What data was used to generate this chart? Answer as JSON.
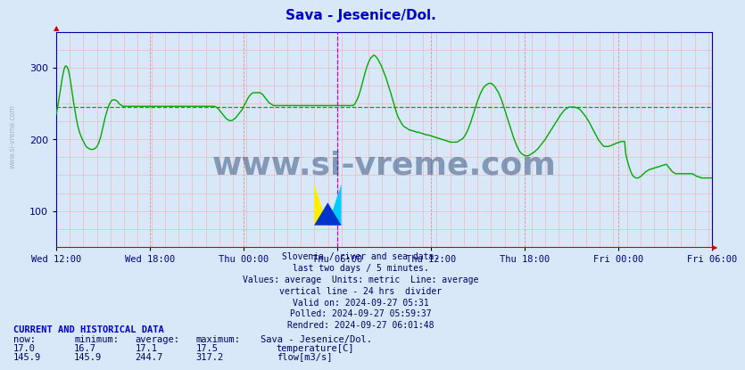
{
  "title": "Sava - Jesenice/Dol.",
  "title_color": "#0000cc",
  "bg_color": "#d8e8f8",
  "plot_bg_color": "#d8e8f8",
  "line_color": "#00aa00",
  "avg_line_color": "#00aa00",
  "avg_value": 244.7,
  "ymin": 50,
  "ymax": 350,
  "yticks": [
    100,
    200,
    300
  ],
  "xlabel_color": "#000080",
  "xtick_labels": [
    "Wed 12:00",
    "Wed 18:00",
    "Thu 00:00",
    "Thu 06:00",
    "Thu 12:00",
    "Thu 18:00",
    "Fri 00:00",
    "Fri 06:00"
  ],
  "subtitle_lines": [
    "Slovenia / river and sea data.",
    "last two days / 5 minutes.",
    "Values: average  Units: metric  Line: average",
    "vertical line - 24 hrs  divider",
    "Valid on: 2024-09-27 05:31",
    "Polled: 2024-09-27 05:59:37",
    "Rendred: 2024-09-27 06:01:48"
  ],
  "footer_title": "CURRENT AND HISTORICAL DATA",
  "footer_cols": [
    "now:",
    "minimum:",
    "average:",
    "maximum:",
    "Sava - Jesenice/Dol."
  ],
  "footer_rows": [
    [
      "17.0",
      "16.7",
      "17.1",
      "17.5",
      "temperature[C]",
      "#cc0000"
    ],
    [
      "145.9",
      "145.9",
      "244.7",
      "317.2",
      "flow[m3/s]",
      "#00aa00"
    ]
  ],
  "watermark": "www.si-vreme.com",
  "watermark_color": "#1a3a6a",
  "n_points": 576,
  "flow_data": [
    235,
    243,
    252,
    262,
    272,
    282,
    291,
    298,
    302,
    302,
    300,
    295,
    287,
    277,
    266,
    255,
    245,
    236,
    227,
    219,
    213,
    208,
    204,
    200,
    197,
    194,
    191,
    189,
    188,
    187,
    186,
    186,
    186,
    186,
    187,
    188,
    190,
    193,
    197,
    202,
    208,
    215,
    222,
    229,
    235,
    240,
    245,
    249,
    252,
    254,
    255,
    255,
    255,
    254,
    253,
    251,
    249,
    248,
    247,
    246,
    246,
    246,
    246,
    246,
    246,
    246,
    246,
    246,
    246,
    246,
    246,
    246,
    246,
    246,
    246,
    246,
    246,
    246,
    246,
    246,
    246,
    246,
    246,
    246,
    246,
    246,
    246,
    246,
    246,
    246,
    246,
    246,
    246,
    246,
    246,
    246,
    246,
    246,
    246,
    246,
    246,
    246,
    246,
    246,
    246,
    246,
    246,
    246,
    246,
    246,
    246,
    246,
    246,
    246,
    246,
    246,
    246,
    246,
    246,
    246,
    246,
    246,
    246,
    246,
    246,
    246,
    246,
    246,
    246,
    246,
    246,
    246,
    246,
    246,
    246,
    246,
    246,
    246,
    246,
    246,
    246,
    245,
    244,
    243,
    241,
    239,
    237,
    235,
    233,
    231,
    229,
    228,
    227,
    226,
    226,
    226,
    227,
    228,
    229,
    231,
    233,
    235,
    237,
    239,
    241,
    244,
    247,
    250,
    253,
    256,
    259,
    261,
    263,
    264,
    265,
    265,
    265,
    265,
    265,
    265,
    265,
    264,
    263,
    261,
    259,
    257,
    255,
    253,
    251,
    250,
    249,
    248,
    247,
    247,
    247,
    247,
    247,
    247,
    247,
    247,
    247,
    247,
    247,
    247,
    247,
    247,
    247,
    247,
    247,
    247,
    247,
    247,
    247,
    247,
    247,
    247,
    247,
    247,
    247,
    247,
    247,
    247,
    247,
    247,
    247,
    247,
    247,
    247,
    247,
    247,
    247,
    247,
    247,
    247,
    247,
    247,
    247,
    247,
    247,
    247,
    247,
    247,
    247,
    247,
    247,
    247,
    247,
    247,
    247,
    247,
    247,
    247,
    247,
    247,
    247,
    247,
    247,
    247,
    247,
    247,
    247,
    247,
    247,
    248,
    250,
    253,
    256,
    260,
    265,
    270,
    276,
    282,
    288,
    294,
    299,
    304,
    308,
    311,
    314,
    315,
    317,
    317,
    316,
    314,
    312,
    309,
    306,
    303,
    299,
    295,
    291,
    287,
    282,
    277,
    272,
    267,
    262,
    256,
    251,
    245,
    240,
    235,
    231,
    228,
    225,
    222,
    220,
    218,
    217,
    216,
    215,
    214,
    213,
    213,
    212,
    212,
    211,
    211,
    210,
    210,
    210,
    209,
    209,
    208,
    208,
    207,
    207,
    206,
    206,
    206,
    205,
    205,
    204,
    204,
    203,
    203,
    202,
    202,
    201,
    201,
    200,
    200,
    199,
    199,
    198,
    198,
    197,
    197,
    196,
    196,
    196,
    196,
    196,
    196,
    196,
    197,
    198,
    199,
    200,
    201,
    203,
    205,
    208,
    211,
    215,
    219,
    223,
    228,
    233,
    238,
    243,
    248,
    253,
    257,
    261,
    265,
    268,
    271,
    273,
    275,
    276,
    277,
    278,
    278,
    278,
    277,
    276,
    274,
    272,
    269,
    267,
    264,
    260,
    256,
    252,
    247,
    242,
    237,
    232,
    227,
    222,
    217,
    212,
    207,
    202,
    198,
    194,
    190,
    187,
    184,
    182,
    180,
    179,
    178,
    177,
    177,
    177,
    177,
    178,
    179,
    180,
    181,
    182,
    183,
    185,
    186,
    188,
    190,
    192,
    194,
    196,
    198,
    200,
    203,
    205,
    208,
    210,
    213,
    215,
    218,
    220,
    223,
    225,
    228,
    230,
    233,
    235,
    237,
    239,
    241,
    242,
    243,
    244,
    245,
    245,
    245,
    245,
    245,
    245,
    244,
    244,
    243,
    242,
    241,
    239,
    237,
    235,
    233,
    231,
    228,
    226,
    223,
    220,
    217,
    214,
    211,
    208,
    205,
    202,
    199,
    197,
    195,
    193,
    191,
    190,
    190,
    190,
    190,
    190,
    191,
    191,
    192,
    193,
    193,
    194,
    195,
    195,
    196,
    196,
    197,
    197,
    197,
    197,
    180,
    173,
    167,
    162,
    157,
    153,
    150,
    148,
    147,
    146,
    146,
    146,
    147,
    148,
    149,
    151,
    152,
    154,
    155,
    156,
    157,
    158,
    158,
    159,
    159,
    160,
    160,
    161,
    161,
    162,
    162,
    163,
    163,
    164,
    164,
    165,
    165,
    163,
    161,
    159,
    157,
    155,
    154,
    153,
    152,
    152,
    152,
    152,
    152,
    152,
    152,
    152,
    152,
    152,
    152,
    152,
    152,
    152,
    152,
    152,
    151,
    150,
    149,
    148,
    148,
    147,
    147,
    146,
    146,
    146,
    146,
    146,
    146,
    146,
    146,
    146,
    146
  ]
}
